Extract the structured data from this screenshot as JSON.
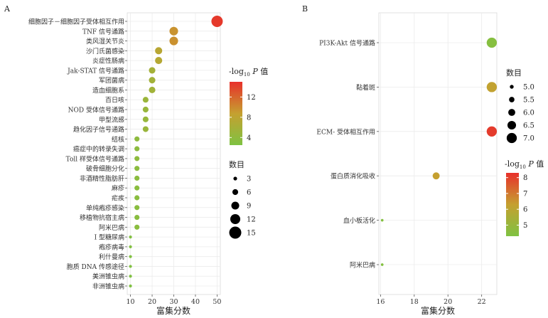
{
  "chart_data": [
    {
      "panel_label": "A",
      "type": "scatter",
      "xlabel": "富集分数",
      "x_ticks": [
        10,
        20,
        30,
        40,
        50
      ],
      "xlim": [
        8.5,
        51.5
      ],
      "size_legend_title": "数目",
      "size_legend_values": [
        3,
        6,
        9,
        12,
        15
      ],
      "size_range": [
        1,
        15
      ],
      "color_legend_title_parts": [
        "-log",
        "10",
        " ",
        "P",
        " 值"
      ],
      "color_legend_ticks": [
        4,
        8,
        12
      ],
      "color_range": [
        2.5,
        15
      ],
      "color_low": "#7fc242",
      "color_mid": "#c5a030",
      "color_high": "#e8302b",
      "categories": [
        "细胞因子－细胞因子受体相互作用",
        "TNF 信号通路",
        "类风湿关节炎",
        "沙门氏菌感染",
        "炎症性肠病",
        "Jak-STAT 信号通路",
        "军团菌病",
        "造血细胞系",
        "百日咳",
        "NOD 受体信号通路",
        "甲型流感",
        "趋化因子信号通路",
        "结核",
        "癌症中的转录失调",
        "Toll 样受体信号通路",
        "破骨细胞分化",
        "非酒精性脂肪肝",
        "麻疹",
        "疟疾",
        "单纯疱疹感染",
        "移植物抗宿主病",
        "阿米巴病",
        "I 型糖尿病",
        "疱疹病毒",
        "利什曼病",
        "胞质 DNA 传感途径",
        "美洲锥虫病",
        "非洲锥虫病"
      ],
      "points": [
        {
          "x": 50,
          "count": 14,
          "p": 14.5
        },
        {
          "x": 30,
          "count": 10,
          "p": 9.5
        },
        {
          "x": 30,
          "count": 10,
          "p": 9.6
        },
        {
          "x": 23,
          "count": 8,
          "p": 7.6
        },
        {
          "x": 23,
          "count": 8,
          "p": 7.3
        },
        {
          "x": 20,
          "count": 7,
          "p": 5.8
        },
        {
          "x": 20,
          "count": 7,
          "p": 5.6
        },
        {
          "x": 20,
          "count": 7,
          "p": 5.5
        },
        {
          "x": 17,
          "count": 6,
          "p": 4.9
        },
        {
          "x": 17,
          "count": 6,
          "p": 4.7
        },
        {
          "x": 17,
          "count": 6,
          "p": 4.6
        },
        {
          "x": 17,
          "count": 6,
          "p": 4.8
        },
        {
          "x": 13,
          "count": 5,
          "p": 3.8
        },
        {
          "x": 13,
          "count": 5,
          "p": 3.7
        },
        {
          "x": 13,
          "count": 5,
          "p": 3.8
        },
        {
          "x": 13,
          "count": 5,
          "p": 3.6
        },
        {
          "x": 13,
          "count": 5,
          "p": 3.6
        },
        {
          "x": 13,
          "count": 5,
          "p": 3.5
        },
        {
          "x": 13,
          "count": 5,
          "p": 3.5
        },
        {
          "x": 13,
          "count": 5,
          "p": 3.4
        },
        {
          "x": 13,
          "count": 5,
          "p": 3.4
        },
        {
          "x": 13,
          "count": 5,
          "p": 3.5
        },
        {
          "x": 10,
          "count": 2,
          "p": 2.8
        },
        {
          "x": 10,
          "count": 2,
          "p": 2.8
        },
        {
          "x": 10,
          "count": 2,
          "p": 2.7
        },
        {
          "x": 10,
          "count": 2,
          "p": 2.7
        },
        {
          "x": 10,
          "count": 2,
          "p": 2.6
        },
        {
          "x": 10,
          "count": 2,
          "p": 2.6
        }
      ]
    },
    {
      "panel_label": "B",
      "type": "scatter",
      "xlabel": "富集分数",
      "x_ticks": [
        16,
        18,
        20,
        22
      ],
      "xlim": [
        15.9,
        22.9
      ],
      "size_legend_title": "数目",
      "size_legend_values": [
        "5.0",
        "5.5",
        "6.0",
        "6.5",
        "7.0"
      ],
      "size_range": [
        4.5,
        7.2
      ],
      "color_legend_title_parts": [
        "-log",
        "10",
        " ",
        "P",
        " 值"
      ],
      "color_legend_ticks": [
        5,
        6,
        7,
        8
      ],
      "color_range": [
        4.3,
        8.3
      ],
      "color_low": "#7fc242",
      "color_mid": "#c5a030",
      "color_high": "#e8302b",
      "categories": [
        "PI3K-Akt 信号通路",
        "黏着斑",
        "ECM- 受体相互作用",
        "蛋白质消化吸收",
        "血小板活化",
        "阿米巴病"
      ],
      "points": [
        {
          "x": 22.6,
          "count": 7,
          "p": 4.5
        },
        {
          "x": 22.6,
          "count": 7,
          "p": 6.2
        },
        {
          "x": 22.6,
          "count": 7,
          "p": 8.1
        },
        {
          "x": 19.3,
          "count": 6,
          "p": 6.3
        },
        {
          "x": 16.1,
          "count": 4.6,
          "p": 4.4
        },
        {
          "x": 16.1,
          "count": 4.6,
          "p": 4.4
        }
      ]
    }
  ]
}
